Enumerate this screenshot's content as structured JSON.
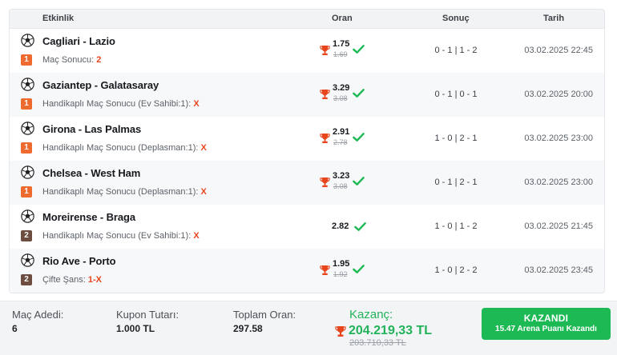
{
  "header": {
    "event": "Etkinlik",
    "odds": "Oran",
    "result": "Sonuç",
    "date": "Tarih"
  },
  "colors": {
    "accent_orange": "#ef6a2e",
    "badge_brown": "#6d4d3f",
    "win_green": "#1db954",
    "pick_red": "#e8451c"
  },
  "rows": [
    {
      "teams": "Cagliari - Lazio",
      "badge": "1",
      "market": "Maç Sonucu:",
      "pick": "2",
      "odd": "1.75",
      "odd_old": "1.69",
      "score": "0 - 1  |  1 - 2",
      "date": "03.02.2025 22:45"
    },
    {
      "teams": "Gaziantep - Galatasaray",
      "badge": "1",
      "market": "Handikaplı Maç Sonucu (Ev Sahibi:1):",
      "pick": "X",
      "odd": "3.29",
      "odd_old": "3.08",
      "score": "0 - 1  |  0 - 1",
      "date": "03.02.2025 20:00"
    },
    {
      "teams": "Girona - Las Palmas",
      "badge": "1",
      "market": "Handikaplı Maç Sonucu (Deplasman:1):",
      "pick": "X",
      "odd": "2.91",
      "odd_old": "2.78",
      "score": "1 - 0  |  2 - 1",
      "date": "03.02.2025 23:00"
    },
    {
      "teams": "Chelsea - West Ham",
      "badge": "1",
      "market": "Handikaplı Maç Sonucu (Deplasman:1):",
      "pick": "X",
      "odd": "3.23",
      "odd_old": "3.08",
      "score": "0 - 1  |  2 - 1",
      "date": "03.02.2025 23:00"
    },
    {
      "teams": "Moreirense - Braga",
      "badge": "2",
      "market": "Handikaplı Maç Sonucu (Ev Sahibi:1):",
      "pick": "X",
      "odd": "2.82",
      "score": "1 - 0  |  1 - 2",
      "date": "03.02.2025 21:45"
    },
    {
      "teams": "Rio Ave - Porto",
      "badge": "2",
      "market": "Çifte Şans:",
      "pick": "1-X",
      "odd": "1.95",
      "odd_old": "1.92",
      "score": "1 - 0  |  2 - 2",
      "date": "03.02.2025 23:45"
    }
  ],
  "footer": {
    "match_count_label": "Maç Adedi:",
    "match_count": "6",
    "coupon_label": "Kupon Tutarı:",
    "coupon": "1.000 TL",
    "total_odds_label": "Toplam Oran:",
    "total_odds": "297.58",
    "win_label": "Kazanç:",
    "win_value": "204.219,33 TL",
    "win_old": "203.710,33 TL",
    "button_title": "KAZANDI",
    "button_sub": "15.47 Arena Puanı Kazandı"
  }
}
